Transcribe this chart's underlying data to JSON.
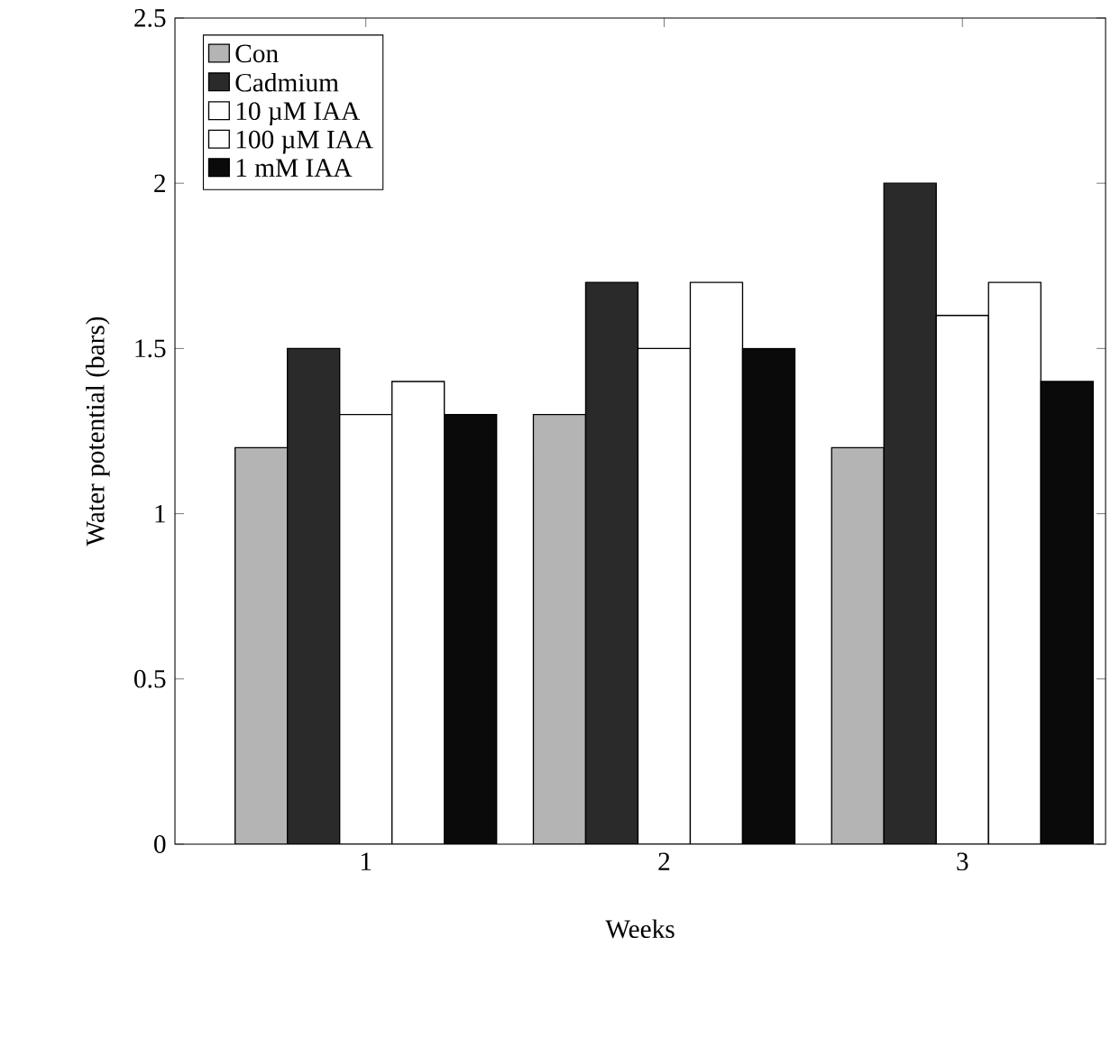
{
  "chart_data": {
    "type": "bar",
    "xlabel": "Weeks",
    "ylabel": "Water potential (bars)",
    "categories": [
      "1",
      "2",
      "3"
    ],
    "series": [
      {
        "name": "Con",
        "color": "#b4b4b4",
        "values": [
          1.2,
          1.3,
          1.2
        ]
      },
      {
        "name": "Cadmium",
        "color": "#2a2a2a",
        "values": [
          1.5,
          1.7,
          2.0
        ]
      },
      {
        "name": "10 µM IAA",
        "color": "#ffffff",
        "values": [
          1.3,
          1.5,
          1.6
        ]
      },
      {
        "name": "100 µM IAA",
        "color": "#ffffff",
        "values": [
          1.4,
          1.7,
          1.7
        ]
      },
      {
        "name": "1 mM IAA",
        "color": "#0a0a0a",
        "values": [
          1.3,
          1.5,
          1.4
        ]
      }
    ],
    "ylim": [
      0,
      2.5
    ],
    "yticks": [
      0,
      0.5,
      1,
      1.5,
      2,
      2.5
    ],
    "legend": "top left",
    "grid": false
  }
}
